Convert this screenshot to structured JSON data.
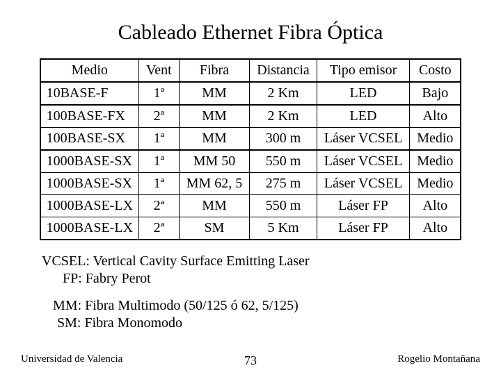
{
  "title": "Cableado Ethernet Fibra Óptica",
  "table": {
    "columns": [
      "Medio",
      "Vent",
      "Fibra",
      "Distancia",
      "Tipo emisor",
      "Costo"
    ],
    "groups": [
      [
        {
          "medio": "10BASE-F",
          "vent": "1ª",
          "fibra": "MM",
          "dist": "2 Km",
          "emisor": "LED",
          "costo": "Bajo"
        }
      ],
      [
        {
          "medio": "100BASE-FX",
          "vent": "2ª",
          "fibra": "MM",
          "dist": "2 Km",
          "emisor": "LED",
          "costo": "Alto"
        },
        {
          "medio": "100BASE-SX",
          "vent": "1ª",
          "fibra": "MM",
          "dist": "300 m",
          "emisor": "Láser VCSEL",
          "costo": "Medio"
        }
      ],
      [
        {
          "medio": "1000BASE-SX",
          "vent": "1ª",
          "fibra": "MM 50",
          "dist": "550 m",
          "emisor": "Láser VCSEL",
          "costo": "Medio"
        },
        {
          "medio": "1000BASE-SX",
          "vent": "1ª",
          "fibra": "MM 62, 5",
          "dist": "275 m",
          "emisor": "Láser VCSEL",
          "costo": "Medio"
        },
        {
          "medio": "1000BASE-LX",
          "vent": "2ª",
          "fibra": "MM",
          "dist": "550 m",
          "emisor": "Láser FP",
          "costo": "Alto"
        },
        {
          "medio": "1000BASE-LX",
          "vent": "2ª",
          "fibra": "SM",
          "dist": "5 Km",
          "emisor": "Láser FP",
          "costo": "Alto"
        }
      ]
    ]
  },
  "notes": {
    "vcsel_label": "VCSEL:",
    "vcsel_text": "Vertical Cavity Surface Emitting Laser",
    "fp_label": "FP:",
    "fp_text": "Fabry Perot",
    "mm_label": "MM:",
    "mm_text": "Fibra Multimodo (50/125 ó 62, 5/125)",
    "sm_label": "SM:",
    "sm_text": "Fibra Monomodo"
  },
  "footer": {
    "left": "Universidad de Valencia",
    "page": "73",
    "right": "Rogelio Montañana"
  }
}
